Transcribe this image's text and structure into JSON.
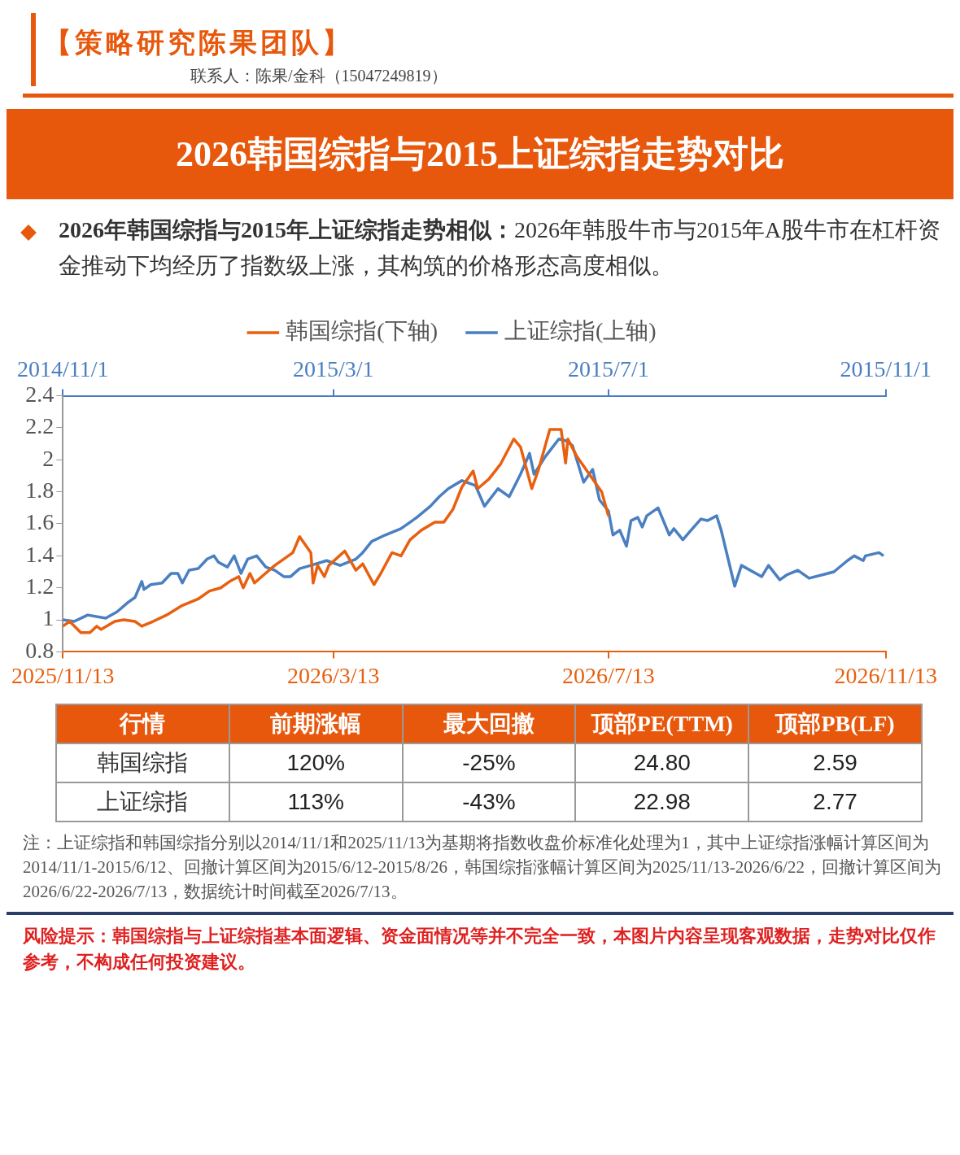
{
  "chart_data": [
    {
      "type": "line",
      "title": "2026韩国综指与2015上证综指走势对比",
      "subtitle": "2026年韩国综指与2015年上证综指走势相似：2026年韩股牛市与2015年A股牛市在杠杆资金推动下均经历了指数级上涨，其构筑的价格形态高度相似。",
      "annotations": [
        "【策略研究陈果团队】",
        "联系人：陈果/金科（15047249819）"
      ],
      "legend": "top",
      "marker": "none",
      "grid": false,
      "series": [
        {
          "name": "韩国综指(下轴)",
          "color": "#e8600f",
          "x": [
            "2025-11-13",
            "2025-11-16",
            "2025-11-21",
            "2025-11-25",
            "2025-11-28",
            "2025-11-30",
            "2025-12-06",
            "2025-12-10",
            "2025-12-15",
            "2025-12-18",
            "2025-12-23",
            "2025-12-29",
            "2026-01-05",
            "2026-01-12",
            "2026-01-17",
            "2026-01-22",
            "2026-01-26",
            "2026-01-30",
            "2026-02-01",
            "2026-02-04",
            "2026-02-06",
            "2026-02-10",
            "2026-02-15",
            "2026-02-21",
            "2026-02-23",
            "2026-02-26",
            "2026-03-03",
            "2026-03-04",
            "2026-03-06",
            "2026-03-09",
            "2026-03-11",
            "2026-03-18",
            "2026-03-23",
            "2026-03-26",
            "2026-03-31",
            "2026-04-03",
            "2026-04-08",
            "2026-04-12",
            "2026-04-16",
            "2026-04-21",
            "2026-04-27",
            "2026-05-01",
            "2026-05-05",
            "2026-05-09",
            "2026-05-14",
            "2026-05-16",
            "2026-05-21",
            "2026-05-26",
            "2026-06-01",
            "2026-06-04",
            "2026-06-09",
            "2026-06-12",
            "2026-06-17",
            "2026-06-22",
            "2026-06-24",
            "2026-06-25",
            "2026-06-29",
            "2026-07-03",
            "2026-07-10",
            "2026-07-13"
          ],
          "values": [
            0.96,
            0.99,
            0.92,
            0.92,
            0.96,
            0.94,
            0.99,
            1.0,
            0.99,
            0.96,
            0.99,
            1.03,
            1.09,
            1.13,
            1.18,
            1.2,
            1.24,
            1.27,
            1.2,
            1.29,
            1.23,
            1.28,
            1.34,
            1.4,
            1.42,
            1.52,
            1.42,
            1.23,
            1.34,
            1.27,
            1.34,
            1.43,
            1.31,
            1.35,
            1.22,
            1.29,
            1.42,
            1.4,
            1.5,
            1.56,
            1.61,
            1.61,
            1.69,
            1.83,
            1.93,
            1.82,
            1.88,
            1.97,
            2.13,
            2.08,
            1.82,
            1.94,
            2.19,
            2.19,
            1.98,
            2.13,
            2.02,
            1.94,
            1.8,
            1.65
          ]
        },
        {
          "name": "上证综指(上轴)",
          "color": "#4a7fc1",
          "axis": "x2",
          "x": [
            "2014-11-01",
            "2014-11-06",
            "2014-11-12",
            "2014-11-20",
            "2014-11-25",
            "2014-11-30",
            "2014-12-03",
            "2014-12-06",
            "2014-12-07",
            "2014-12-10",
            "2014-12-15",
            "2014-12-19",
            "2014-12-22",
            "2014-12-24",
            "2014-12-27",
            "2014-12-31",
            "2015-01-04",
            "2015-01-07",
            "2015-01-09",
            "2015-01-13",
            "2015-01-16",
            "2015-01-19",
            "2015-01-22",
            "2015-01-26",
            "2015-01-30",
            "2015-02-03",
            "2015-02-07",
            "2015-02-10",
            "2015-02-14",
            "2015-02-19",
            "2015-02-26",
            "2015-03-04",
            "2015-03-11",
            "2015-03-14",
            "2015-03-18",
            "2015-03-24",
            "2015-03-31",
            "2015-04-07",
            "2015-04-13",
            "2015-04-17",
            "2015-04-21",
            "2015-04-27",
            "2015-05-03",
            "2015-05-07",
            "2015-05-13",
            "2015-05-18",
            "2015-05-23",
            "2015-05-27",
            "2015-05-29",
            "2015-06-03",
            "2015-06-09",
            "2015-06-12",
            "2015-06-15",
            "2015-06-20",
            "2015-06-24",
            "2015-06-27",
            "2015-07-01",
            "2015-07-03",
            "2015-07-06",
            "2015-07-09",
            "2015-07-11",
            "2015-07-14",
            "2015-07-16",
            "2015-07-18",
            "2015-07-23",
            "2015-07-28",
            "2015-07-30",
            "2015-08-03",
            "2015-08-06",
            "2015-08-11",
            "2015-08-14",
            "2015-08-18",
            "2015-08-20",
            "2015-08-26",
            "2015-08-29",
            "2015-09-07",
            "2015-09-10",
            "2015-09-15",
            "2015-09-18",
            "2015-09-23",
            "2015-09-28",
            "2015-10-09",
            "2015-10-15",
            "2015-10-18",
            "2015-10-22",
            "2015-10-23",
            "2015-10-29",
            "2015-10-31"
          ],
          "values": [
            1.0,
            0.99,
            1.03,
            1.01,
            1.05,
            1.11,
            1.14,
            1.24,
            1.19,
            1.22,
            1.23,
            1.29,
            1.29,
            1.23,
            1.31,
            1.32,
            1.38,
            1.4,
            1.36,
            1.33,
            1.4,
            1.29,
            1.38,
            1.4,
            1.33,
            1.31,
            1.27,
            1.27,
            1.32,
            1.34,
            1.37,
            1.34,
            1.38,
            1.42,
            1.49,
            1.53,
            1.57,
            1.64,
            1.71,
            1.77,
            1.82,
            1.87,
            1.84,
            1.71,
            1.82,
            1.77,
            1.91,
            2.04,
            1.91,
            2.02,
            2.13,
            2.12,
            2.09,
            1.86,
            1.94,
            1.75,
            1.68,
            1.53,
            1.56,
            1.46,
            1.62,
            1.64,
            1.58,
            1.65,
            1.7,
            1.53,
            1.57,
            1.5,
            1.55,
            1.63,
            1.62,
            1.65,
            1.56,
            1.21,
            1.34,
            1.27,
            1.34,
            1.25,
            1.28,
            1.31,
            1.26,
            1.3,
            1.37,
            1.4,
            1.37,
            1.4,
            1.42,
            1.4
          ]
        }
      ],
      "xlim": [
        "2025-11-13",
        "2026-11-13"
      ],
      "xticks": [
        {
          "value": "2025-11-13",
          "label": "2025/11/13"
        },
        {
          "value": "2026-03-13",
          "label": "2026/3/13"
        },
        {
          "value": "2026-07-13",
          "label": "2026/7/13"
        },
        {
          "value": "2026-11-13",
          "label": "2026/11/13"
        }
      ],
      "x2lim": [
        "2014-11-01",
        "2015-11-01"
      ],
      "x2ticks": [
        {
          "value": "2014-11-01",
          "label": "2014/11/1"
        },
        {
          "value": "2015-03-01",
          "label": "2015/3/1"
        },
        {
          "value": "2015-07-01",
          "label": "2015/7/1"
        },
        {
          "value": "2015-11-01",
          "label": "2015/11/1"
        }
      ],
      "ylim": [
        0.8,
        2.4
      ],
      "yticks": [
        0.8,
        1,
        1.2,
        1.4,
        1.6,
        1.8,
        2,
        2.2,
        2.4
      ]
    },
    {
      "type": "other",
      "ylabel": "行情",
      "categories": [
        "前期涨幅",
        "最大回撤",
        "顶部PE(TTM)",
        "顶部PB(LF)"
      ],
      "y_categories": [
        "韩国综指",
        "上证综指"
      ],
      "cell_labels": [
        [
          "120%",
          "-25%",
          "24.80",
          "2.59"
        ],
        [
          "113%",
          "-43%",
          "22.98",
          "2.77"
        ]
      ],
      "annotations": [
        "注：上证综指和韩国综指分别以2014/11/1和2025/11/13为基期将指数收盘价标准化处理为1，其中上证综指涨幅计算区间为2014/11/1-2015/6/12、回撤计算区间为2015/6/12-2015/8/26，韩国综指涨幅计算区间为2025/11/13-2026/6/22，回撤计算区间为2026/6/22-2026/7/13，数据统计时间截至2026/7/13。",
        "风险提示：韩国综指与上证综指基本面逻辑、资金面情况等并不完全一致，本图片内容呈现客观数据，走势对比仅作参考，不构成任何投资建议。"
      ]
    }
  ]
}
